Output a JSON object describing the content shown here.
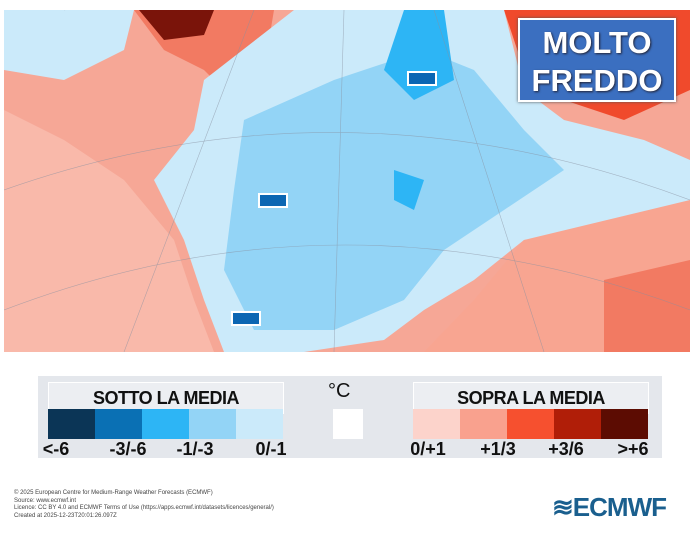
{
  "badge": {
    "line1": "MOLTO",
    "line2": "FREDDO"
  },
  "legend": {
    "below_title": "SOTTO LA MEDIA",
    "above_title": "SOPRA LA MEDIA",
    "unit": "°C",
    "below": [
      {
        "label": "<-6",
        "color": "#0b3556"
      },
      {
        "label": "-3/-6",
        "color": "#0a70b4"
      },
      {
        "label": "-1/-3",
        "color": "#2db5f5"
      },
      {
        "label": "0/-1",
        "color": "#93d4f6"
      },
      {
        "label": "",
        "color": "#cbeafa"
      }
    ],
    "above": [
      {
        "label": "0/+1",
        "color": "#fcd3cb"
      },
      {
        "label": "+1/3",
        "color": "#f9a18e"
      },
      {
        "label": "+3/6",
        "color": "#f6502f"
      },
      {
        "label": ">+6",
        "color": "#b01e08"
      },
      {
        "label": "",
        "color": "#5c0c02"
      }
    ]
  },
  "footer": {
    "l1": "© 2025 European Centre for Medium-Range Weather Forecasts (ECMWF)",
    "l2": "Source: www.ecmwf.int",
    "l3": "Licence: CC BY 4.0 and ECMWF Terms of Use (https://apps.ecmwf.int/datasets/licences/general/)",
    "l4": "Created at 2025-12-23T20:01:26.097Z"
  },
  "logo": "ECMWF"
}
